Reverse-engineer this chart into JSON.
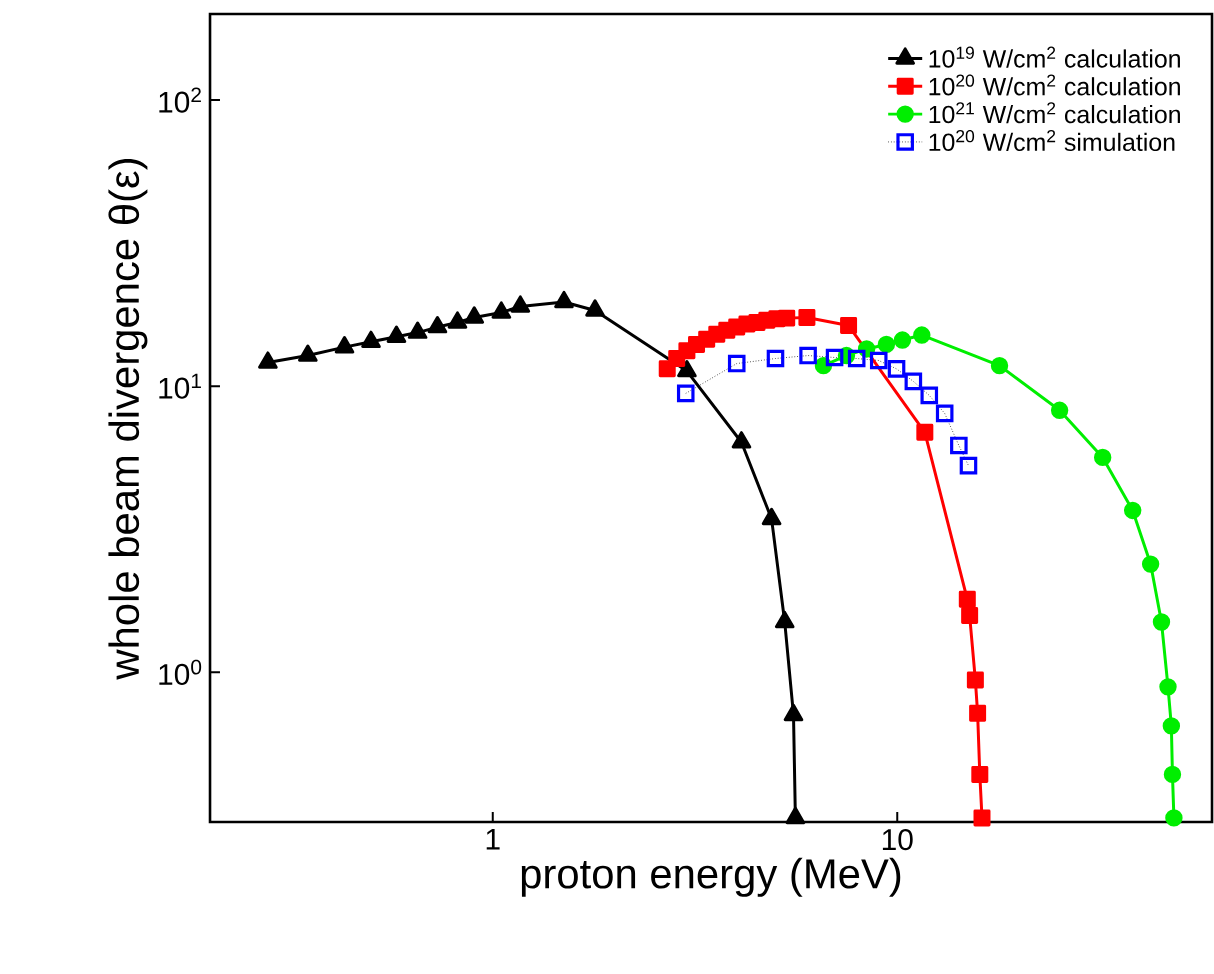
{
  "chart_data": {
    "type": "line",
    "xlabel": "proton energy (MeV)",
    "ylabel": "whole beam divergence θ(ε)",
    "log": "xy",
    "xlim": [
      0.2,
      60
    ],
    "ylim": [
      0.3,
      200
    ],
    "xticks": [
      1,
      10
    ],
    "yticks": [
      {
        "value": 1,
        "label": "10$^{0}$"
      },
      {
        "value": 10,
        "label": "10$^{1}$"
      },
      {
        "value": 100,
        "label": "10$^{2}$"
      }
    ],
    "grid": false,
    "legend": "top right",
    "series": [
      {
        "name": "10$^{19}$ W/cm$^{2}$ calculation",
        "color": "#000000",
        "marker": "triangle",
        "line_style": "solid",
        "x": [
          0.278,
          0.349,
          0.43,
          0.5,
          0.578,
          0.652,
          0.73,
          0.818,
          0.9,
          1.05,
          1.17,
          1.5,
          1.79,
          3.02,
          4.12,
          4.89,
          5.27,
          5.54,
          5.6
        ],
        "values": [
          12.1,
          12.8,
          13.7,
          14.3,
          14.9,
          15.4,
          16.1,
          16.7,
          17.4,
          18.1,
          19.0,
          19.7,
          18.4,
          11.3,
          6.37,
          3.44,
          1.5,
          0.71,
          0.31
        ]
      },
      {
        "name": "10$^{20}$ W/cm$^{2}$ calculation",
        "color": "#ff0000",
        "marker": "square",
        "line_style": "solid",
        "x": [
          2.7,
          2.85,
          3.02,
          3.19,
          3.38,
          3.58,
          3.79,
          4.01,
          4.25,
          4.5,
          4.76,
          5.04,
          5.33,
          5.98,
          7.58,
          11.7,
          14.9,
          15.1,
          15.6,
          15.8,
          16.0,
          16.2
        ],
        "values": [
          11.5,
          12.5,
          13.3,
          14.0,
          14.6,
          15.2,
          15.7,
          16.1,
          16.5,
          16.7,
          17.0,
          17.2,
          17.3,
          17.4,
          16.3,
          6.9,
          1.8,
          1.58,
          0.94,
          0.72,
          0.44,
          0.31
        ]
      },
      {
        "name": "10$^{21}$ W/cm$^{2}$ calculation",
        "color": "#00ee00",
        "marker": "circle",
        "line_style": "solid",
        "x": [
          6.57,
          7.49,
          8.4,
          9.4,
          10.3,
          11.5,
          17.9,
          25.2,
          32.2,
          38.2,
          42.3,
          45.0,
          46.7,
          47.6,
          47.9,
          48.3
        ],
        "values": [
          11.8,
          12.8,
          13.5,
          14.0,
          14.5,
          15.1,
          11.8,
          8.24,
          5.64,
          3.68,
          2.39,
          1.5,
          0.89,
          0.65,
          0.44,
          0.31
        ]
      },
      {
        "name": "10$^{20}$ W/cm$^{2}$ simulation",
        "color": "#0000ff",
        "marker": "square",
        "line_style": "dotted",
        "x": [
          3.0,
          4.01,
          5.0,
          6.02,
          7.0,
          7.94,
          9.0,
          9.96,
          10.96,
          12.0,
          13.1,
          14.2,
          15.0
        ],
        "values": [
          9.44,
          12.0,
          12.5,
          12.8,
          12.6,
          12.5,
          12.3,
          11.5,
          10.4,
          9.29,
          8.04,
          6.21,
          5.28
        ]
      }
    ]
  }
}
